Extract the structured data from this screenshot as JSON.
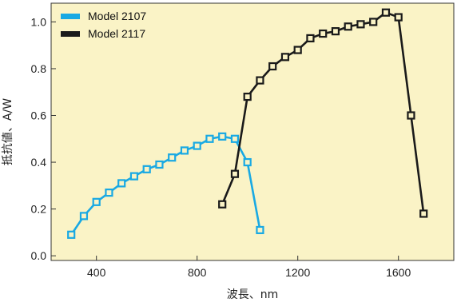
{
  "chart_data": {
    "type": "line",
    "xlabel": "波長、nm",
    "ylabel": "抵抗値、A/W",
    "xlim": [
      220,
      1820
    ],
    "ylim": [
      -0.02,
      1.08
    ],
    "xticks": [
      "400",
      "800",
      "1200",
      "1600"
    ],
    "xtick_values": [
      400,
      800,
      1200,
      1600
    ],
    "yticks": [
      "0.0",
      "0.2",
      "0.4",
      "0.6",
      "0.8",
      "1.0"
    ],
    "ytick_values": [
      0.0,
      0.2,
      0.4,
      0.6,
      0.8,
      1.0
    ],
    "legend_position": "top-left",
    "background_color": "#faf3c6",
    "series": [
      {
        "name": "Model 2107",
        "color": "#19a9e3",
        "marker": "square-open",
        "x": [
          300,
          350,
          400,
          450,
          500,
          550,
          600,
          650,
          700,
          750,
          800,
          850,
          900,
          950,
          1000,
          1050
        ],
        "y": [
          0.09,
          0.17,
          0.23,
          0.27,
          0.31,
          0.34,
          0.37,
          0.39,
          0.42,
          0.45,
          0.47,
          0.5,
          0.51,
          0.5,
          0.4,
          0.11
        ]
      },
      {
        "name": "Model 2117",
        "color": "#1a1a1a",
        "marker": "square-open",
        "x": [
          900,
          950,
          1000,
          1050,
          1100,
          1150,
          1200,
          1250,
          1300,
          1350,
          1400,
          1450,
          1500,
          1550,
          1600,
          1650,
          1700
        ],
        "y": [
          0.22,
          0.35,
          0.68,
          0.75,
          0.81,
          0.85,
          0.88,
          0.93,
          0.95,
          0.96,
          0.98,
          0.99,
          1.0,
          1.04,
          1.02,
          0.6,
          0.18
        ]
      }
    ]
  }
}
